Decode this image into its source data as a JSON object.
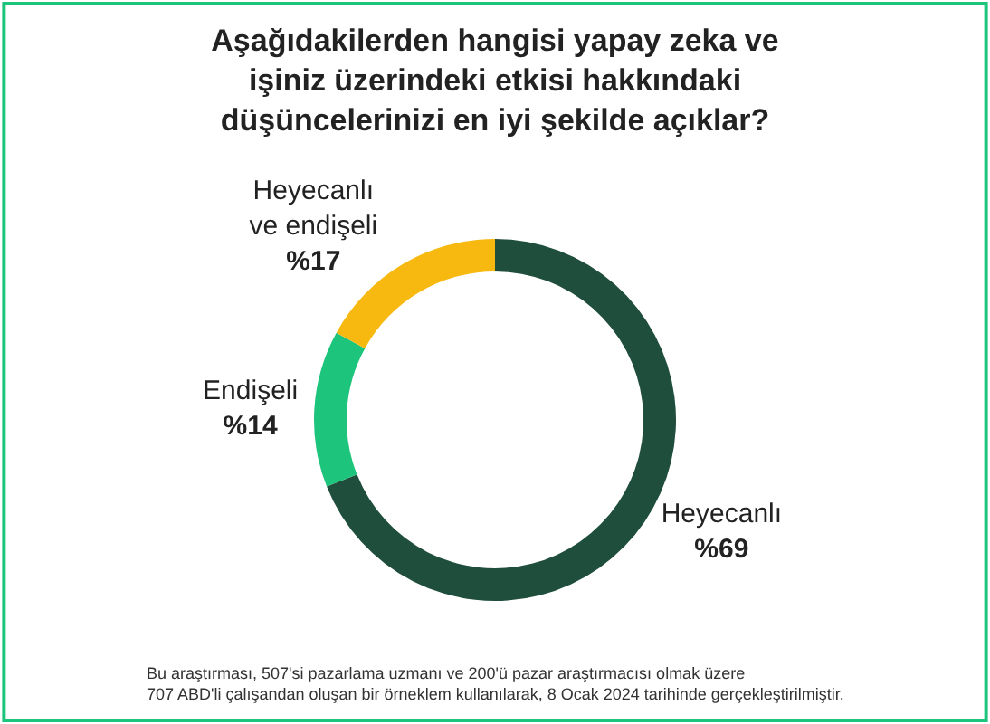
{
  "chart_data": {
    "type": "donut",
    "title": "Aşağıdakilerden hangisi yapay zeka ve\nişiniz üzerindeki etkisi hakkındaki\ndüşüncelerinizi en iyi şekilde açıklar?",
    "categories": [
      "Heyecanlı",
      "Endişeli",
      "Heyecanlı ve endişeli"
    ],
    "values": [
      69,
      14,
      17
    ],
    "value_labels": [
      "%69",
      "%14",
      "%17"
    ],
    "colors": [
      "#1f4e3d",
      "#1dc47b",
      "#f7b90f"
    ],
    "legend": false,
    "annotations": [
      "Bu araştırması, 507'si pazarlama uzmanı ve 200'ü pazar araştırmacısı olmak üzere\n707 ABD'li çalışandan oluşan bir örneklem kullanılarak, 8 Ocak 2024 tarihinde gerçekleştirilmiştir."
    ]
  }
}
